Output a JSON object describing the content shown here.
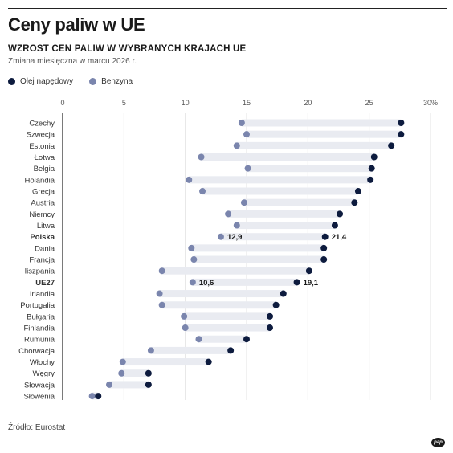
{
  "header": {
    "title": "Ceny paliw w UE",
    "subtitle": "WZROST CEN PALIW W WYBRANYCH KRAJACH UE",
    "note": "Zmiana miesięczna w marcu 2026 r."
  },
  "footer": {
    "source": "Źródło: Eurostat",
    "logo": "pap"
  },
  "colors": {
    "diesel": "#0d1b3e",
    "petrol": "#7a85ad",
    "bar": "#e9ebf1"
  },
  "chart_data": {
    "type": "dot",
    "title": "Ceny paliw w UE",
    "subtitle": "WZROST CEN PALIW W WYBRANYCH KRAJACH UE",
    "xlim": [
      0,
      30
    ],
    "x_ticks": [
      "0",
      "5",
      "10",
      "15",
      "20",
      "25",
      "30%"
    ],
    "grid": true,
    "legend_position": "top-left",
    "categories": [
      "Czechy",
      "Szwecja",
      "Estonia",
      "Łotwa",
      "Belgia",
      "Holandia",
      "Grecja",
      "Austria",
      "Niemcy",
      "Litwa",
      "Polska",
      "Dania",
      "Francja",
      "Hiszpania",
      "UE27",
      "Irlandia",
      "Portugalia",
      "Bułgaria",
      "Finlandia",
      "Rumunia",
      "Chorwacja",
      "Włochy",
      "Węgry",
      "Słowacja",
      "Słowenia"
    ],
    "highlighted": [
      "Polska",
      "UE27"
    ],
    "series": [
      {
        "name": "Olej napędowy",
        "color": "#0d1b3e",
        "values": [
          27.6,
          27.6,
          26.8,
          25.4,
          25.2,
          25.1,
          24.1,
          23.8,
          22.6,
          22.2,
          21.4,
          21.3,
          21.3,
          20.1,
          19.1,
          18.0,
          17.4,
          16.9,
          16.9,
          15.0,
          13.7,
          11.9,
          7.0,
          7.0,
          2.9
        ]
      },
      {
        "name": "Benzyna",
        "color": "#7a85ad",
        "values": [
          14.6,
          15.0,
          14.2,
          11.3,
          15.1,
          10.3,
          11.4,
          14.8,
          13.5,
          14.2,
          12.9,
          10.5,
          10.7,
          8.1,
          10.6,
          7.9,
          8.1,
          9.9,
          10.0,
          11.1,
          7.2,
          4.9,
          4.8,
          3.8,
          2.4
        ]
      }
    ],
    "data_labels": [
      {
        "category": "Polska",
        "petrol": "12,9",
        "diesel": "21,4"
      },
      {
        "category": "UE27",
        "petrol": "10,6",
        "diesel": "19,1"
      }
    ]
  }
}
